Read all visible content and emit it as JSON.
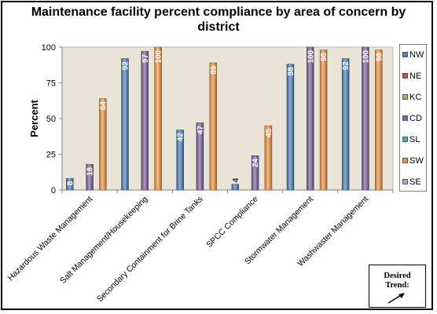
{
  "chart_data": {
    "type": "bar",
    "title": "Maintenance facility percent compliance by area of concern by district",
    "ylabel": "Percent",
    "xlabel": "",
    "ylim": [
      0,
      100
    ],
    "yticks": [
      0,
      25,
      50,
      75,
      100
    ],
    "grid": false,
    "legend_position": "right",
    "categories": [
      "Hazardous Waste Management",
      "Salt Management/Housekeeping",
      "Secondary Containment for Brine Tanks",
      "SPCC Compliance",
      "Stormwater Management",
      "Washwaster Management"
    ],
    "series": [
      {
        "name": "NW",
        "color": "#4f81bd",
        "values": [
          8,
          92,
          42,
          4,
          88,
          92
        ]
      },
      {
        "name": "NE",
        "color": "#c0504d",
        "values": [
          null,
          null,
          null,
          null,
          null,
          null
        ]
      },
      {
        "name": "KC",
        "color": "#9bbb59",
        "values": [
          null,
          null,
          null,
          null,
          null,
          null
        ]
      },
      {
        "name": "CD",
        "color": "#8064a2",
        "values": [
          18,
          97,
          47,
          24,
          100,
          100
        ]
      },
      {
        "name": "SL",
        "color": "#4bacc6",
        "values": [
          null,
          null,
          null,
          null,
          null,
          null
        ]
      },
      {
        "name": "SW",
        "color": "#f79646",
        "values": [
          64,
          100,
          89,
          45,
          98,
          98
        ]
      },
      {
        "name": "SE",
        "color": "#95b3d7",
        "values": [
          null,
          null,
          null,
          null,
          null,
          null
        ]
      }
    ],
    "data_labels": [
      [
        "8",
        "92",
        "42",
        "4",
        "88",
        "92"
      ],
      [],
      [],
      [
        "18",
        "97",
        "47",
        "24",
        "100",
        "100"
      ],
      [],
      [
        "64",
        "100",
        "89",
        "45",
        "98",
        "98"
      ],
      []
    ]
  },
  "trend_box": {
    "text": "Desired\nTrend:",
    "icon": "arrow-up-right-icon"
  }
}
